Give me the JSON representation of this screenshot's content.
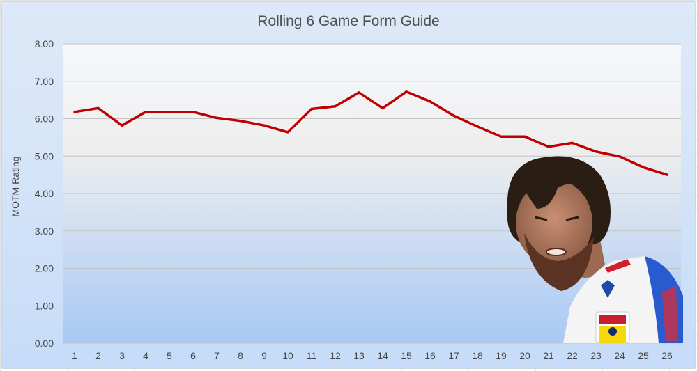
{
  "chart_data": {
    "type": "line",
    "title": "Rolling 6 Game Form Guide",
    "xlabel": "",
    "ylabel": "MOTM Rating",
    "x": [
      1,
      2,
      3,
      4,
      5,
      6,
      7,
      8,
      9,
      10,
      11,
      12,
      13,
      14,
      15,
      16,
      17,
      18,
      19,
      20,
      21,
      22,
      23,
      24,
      25,
      26
    ],
    "series": [
      {
        "values": [
          6.18,
          6.28,
          5.82,
          6.18,
          6.18,
          6.18,
          6.02,
          5.94,
          5.82,
          5.64,
          6.26,
          6.33,
          6.7,
          6.28,
          6.72,
          6.46,
          6.08,
          5.79,
          5.52,
          5.52,
          5.25,
          5.35,
          5.12,
          4.99,
          4.7,
          4.5
        ],
        "color": "#c00000"
      }
    ],
    "y_tick_labels": [
      "0.00",
      "1.00",
      "2.00",
      "3.00",
      "4.00",
      "5.00",
      "6.00",
      "7.00",
      "8.00"
    ],
    "ylim": [
      0,
      8
    ],
    "grid": true,
    "legend": "none"
  },
  "photo": {
    "description_icon": "footballer-photo"
  }
}
